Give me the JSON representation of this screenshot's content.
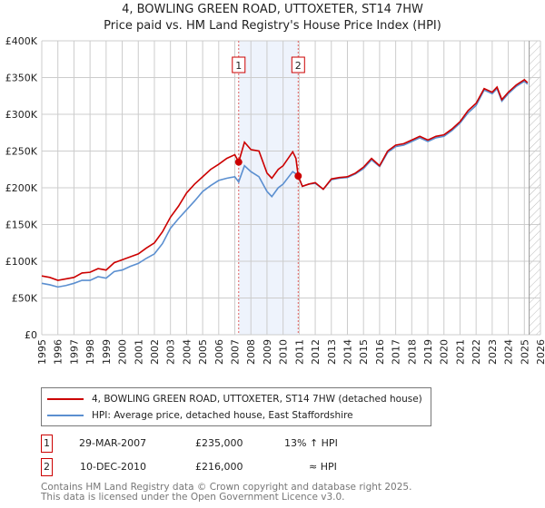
{
  "chart_data": {
    "type": "line",
    "title": "4, BOWLING GREEN ROAD, UTTOXETER, ST14 7HW",
    "subtitle": "Price paid vs. HM Land Registry's House Price Index (HPI)",
    "xlim": [
      1995,
      2026
    ],
    "ylim": [
      0,
      400000
    ],
    "y_ticks": [
      {
        "v": 0,
        "label": "£0"
      },
      {
        "v": 50000,
        "label": "£50K"
      },
      {
        "v": 100000,
        "label": "£100K"
      },
      {
        "v": 150000,
        "label": "£150K"
      },
      {
        "v": 200000,
        "label": "£200K"
      },
      {
        "v": 250000,
        "label": "£250K"
      },
      {
        "v": 300000,
        "label": "£300K"
      },
      {
        "v": 350000,
        "label": "£350K"
      },
      {
        "v": 400000,
        "label": "£400K"
      }
    ],
    "x_ticks": [
      "1995",
      "1996",
      "1997",
      "1998",
      "1999",
      "2000",
      "2001",
      "2002",
      "2003",
      "2004",
      "2005",
      "2006",
      "2007",
      "2008",
      "2009",
      "2010",
      "2011",
      "2012",
      "2013",
      "2014",
      "2015",
      "2016",
      "2017",
      "2018",
      "2019",
      "2020",
      "2021",
      "2022",
      "2023",
      "2024",
      "2025",
      "2026"
    ],
    "grid": true,
    "shaded_region": [
      2007.24,
      2010.94
    ],
    "future_hatch_from": 2025.3,
    "series": [
      {
        "name": "4, BOWLING GREEN ROAD, UTTOXETER, ST14 7HW (detached house)",
        "color": "#cc0000",
        "x": [
          1995,
          1995.5,
          1996,
          1996.5,
          1997,
          1997.5,
          1998,
          1998.5,
          1999,
          1999.5,
          2000,
          2000.5,
          2001,
          2001.5,
          2002,
          2002.5,
          2003,
          2003.5,
          2004,
          2004.5,
          2005,
          2005.5,
          2006,
          2006.5,
          2007,
          2007.24,
          2007.6,
          2008,
          2008.5,
          2009,
          2009.3,
          2009.7,
          2010,
          2010.6,
          2010.8,
          2010.94,
          2011.2,
          2011.6,
          2012,
          2012.5,
          2013,
          2013.5,
          2014,
          2014.5,
          2015,
          2015.5,
          2016,
          2016.5,
          2017,
          2017.5,
          2018,
          2018.5,
          2019,
          2019.5,
          2020,
          2020.5,
          2021,
          2021.5,
          2022,
          2022.5,
          2023,
          2023.3,
          2023.6,
          2024,
          2024.5,
          2025,
          2025.2
        ],
        "y": [
          80000,
          78000,
          74000,
          76000,
          78000,
          84000,
          85000,
          90000,
          88000,
          98000,
          102000,
          106000,
          110000,
          118000,
          125000,
          140000,
          160000,
          175000,
          193000,
          205000,
          215000,
          225000,
          232000,
          240000,
          245000,
          235000,
          262000,
          252000,
          250000,
          220000,
          213000,
          225000,
          230000,
          249000,
          240000,
          216000,
          202000,
          205000,
          207000,
          198000,
          212000,
          214000,
          215000,
          220000,
          228000,
          240000,
          230000,
          250000,
          258000,
          260000,
          265000,
          270000,
          265000,
          270000,
          272000,
          280000,
          290000,
          305000,
          315000,
          335000,
          330000,
          337000,
          320000,
          330000,
          340000,
          347000,
          343000
        ]
      },
      {
        "name": "HPI: Average price, detached house, East Staffordshire",
        "color": "#5b8fd0",
        "x": [
          1995,
          1995.5,
          1996,
          1996.5,
          1997,
          1997.5,
          1998,
          1998.5,
          1999,
          1999.5,
          2000,
          2000.5,
          2001,
          2001.5,
          2002,
          2002.5,
          2003,
          2003.5,
          2004,
          2004.5,
          2005,
          2005.5,
          2006,
          2006.5,
          2007,
          2007.24,
          2007.6,
          2008,
          2008.5,
          2009,
          2009.3,
          2009.7,
          2010,
          2010.6,
          2010.8,
          2010.94,
          2011.2,
          2011.6,
          2012,
          2012.5,
          2013,
          2013.5,
          2014,
          2014.5,
          2015,
          2015.5,
          2016,
          2016.5,
          2017,
          2017.5,
          2018,
          2018.5,
          2019,
          2019.5,
          2020,
          2020.5,
          2021,
          2021.5,
          2022,
          2022.5,
          2023,
          2023.3,
          2023.6,
          2024,
          2024.5,
          2025,
          2025.2
        ],
        "y": [
          70000,
          68000,
          65000,
          67000,
          70000,
          74000,
          74000,
          79000,
          77000,
          86000,
          88000,
          93000,
          97000,
          104000,
          110000,
          124000,
          145000,
          158000,
          170000,
          182000,
          195000,
          203000,
          210000,
          213000,
          215000,
          208000,
          230000,
          222000,
          215000,
          195000,
          188000,
          200000,
          205000,
          222000,
          219000,
          216000,
          202000,
          205000,
          206000,
          198000,
          211000,
          213000,
          214000,
          219000,
          226000,
          238000,
          229000,
          248000,
          256000,
          258000,
          263000,
          268000,
          263000,
          268000,
          270000,
          278000,
          288000,
          302000,
          312000,
          333000,
          328000,
          335000,
          318000,
          328000,
          338000,
          345000,
          341000
        ]
      }
    ],
    "sales": [
      {
        "label": "1",
        "x": 2007.24,
        "y": 235000
      },
      {
        "label": "2",
        "x": 2010.94,
        "y": 216000
      }
    ]
  },
  "legend": {
    "red": "4, BOWLING GREEN ROAD, UTTOXETER, ST14 7HW (detached house)",
    "blue": "HPI: Average price, detached house, East Staffordshire"
  },
  "transactions": [
    {
      "num": "1",
      "date": "29-MAR-2007",
      "price": "£235,000",
      "hpi": "13% ↑ HPI"
    },
    {
      "num": "2",
      "date": "10-DEC-2010",
      "price": "£216,000",
      "hpi": "≈ HPI"
    }
  ],
  "footer": {
    "line1": "Contains HM Land Registry data © Crown copyright and database right 2025.",
    "line2": "This data is licensed under the Open Government Licence v3.0."
  }
}
